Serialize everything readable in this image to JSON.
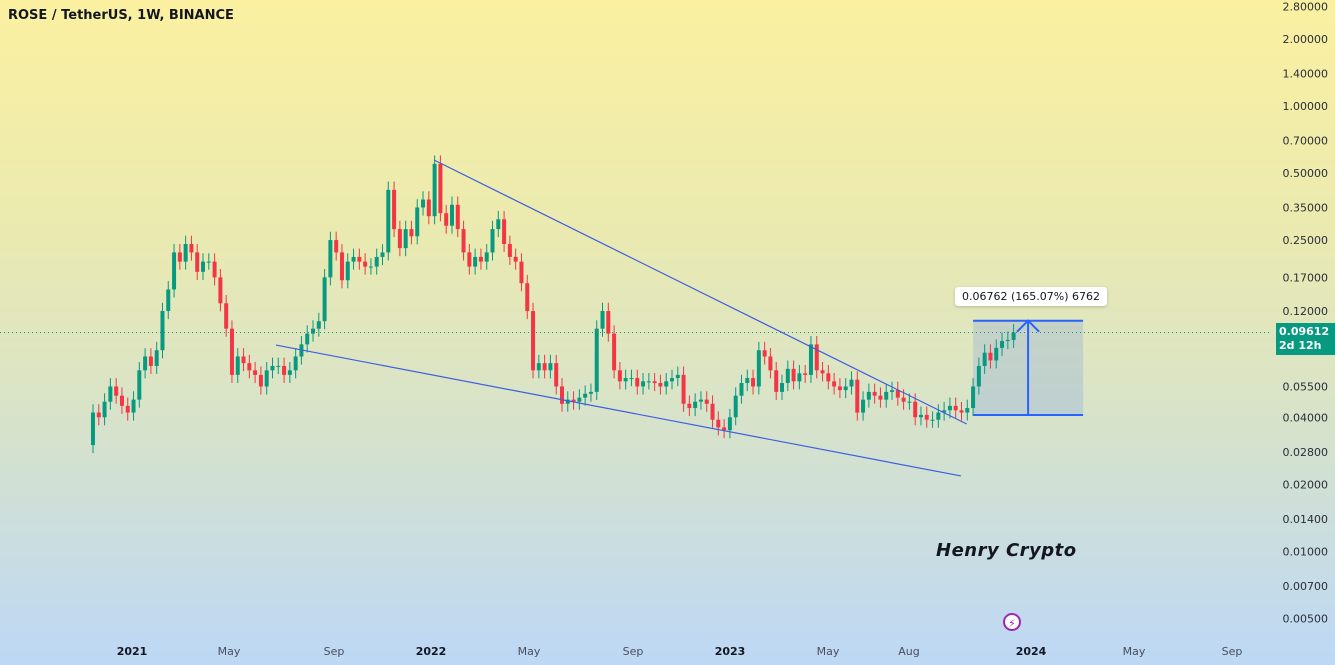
{
  "header": {
    "title": "ROSE / TetherUS, 1W, BINANCE"
  },
  "watermark": "Henry Crypto",
  "event_icon": "lightning-icon",
  "price_tag": {
    "price": "0.09612",
    "countdown": "2d 12h",
    "color": "#089981"
  },
  "measure": {
    "label": "0.06762 (165.07%) 6762",
    "from_price": 0.04096,
    "to_price": 0.10858,
    "from_week": 152,
    "to_week": 171,
    "color": "#2962ff"
  },
  "colors": {
    "up": "#089981",
    "down": "#f23645",
    "trendline": "#3d5ee0"
  },
  "chart_data": {
    "type": "candlestick",
    "title": "ROSE / TetherUS, 1W, BINANCE",
    "scale": "log",
    "interval": "1W",
    "first_open": 0.03,
    "last_price": 0.09612,
    "y_ticks": [
      "2.80000",
      "2.00000",
      "1.40000",
      "1.00000",
      "0.70000",
      "0.50000",
      "0.35000",
      "0.25000",
      "0.17000",
      "0.12000",
      "0.05500",
      "0.04000",
      "0.02800",
      "0.02000",
      "0.01400",
      "0.01000",
      "0.00700",
      "0.00500"
    ],
    "x_ticks": [
      "2021",
      "May",
      "Sep",
      "2022",
      "May",
      "Sep",
      "2023",
      "May",
      "Aug",
      "2024",
      "May",
      "Sep"
    ],
    "closes": [
      0.042,
      0.04,
      0.047,
      0.055,
      0.05,
      0.045,
      0.042,
      0.048,
      0.065,
      0.075,
      0.068,
      0.08,
      0.12,
      0.15,
      0.22,
      0.2,
      0.24,
      0.22,
      0.18,
      0.2,
      0.2,
      0.17,
      0.13,
      0.1,
      0.062,
      0.075,
      0.07,
      0.065,
      0.062,
      0.055,
      0.065,
      0.068,
      0.068,
      0.062,
      0.065,
      0.075,
      0.085,
      0.095,
      0.1,
      0.108,
      0.17,
      0.25,
      0.22,
      0.165,
      0.2,
      0.21,
      0.2,
      0.19,
      0.19,
      0.21,
      0.22,
      0.42,
      0.28,
      0.23,
      0.28,
      0.26,
      0.35,
      0.38,
      0.32,
      0.55,
      0.33,
      0.29,
      0.36,
      0.28,
      0.22,
      0.19,
      0.21,
      0.2,
      0.22,
      0.28,
      0.31,
      0.24,
      0.21,
      0.2,
      0.16,
      0.12,
      0.065,
      0.07,
      0.065,
      0.07,
      0.055,
      0.046,
      0.048,
      0.047,
      0.049,
      0.051,
      0.052,
      0.1,
      0.12,
      0.095,
      0.065,
      0.058,
      0.06,
      0.06,
      0.055,
      0.058,
      0.058,
      0.057,
      0.055,
      0.058,
      0.06,
      0.062,
      0.046,
      0.044,
      0.047,
      0.048,
      0.046,
      0.039,
      0.036,
      0.035,
      0.04,
      0.05,
      0.057,
      0.06,
      0.055,
      0.08,
      0.075,
      0.065,
      0.052,
      0.057,
      0.066,
      0.058,
      0.063,
      0.062,
      0.085,
      0.065,
      0.063,
      0.058,
      0.055,
      0.053,
      0.055,
      0.059,
      0.042,
      0.048,
      0.052,
      0.05,
      0.048,
      0.052,
      0.053,
      0.049,
      0.047,
      0.047,
      0.04,
      0.041,
      0.039,
      0.039,
      0.042,
      0.043,
      0.045,
      0.043,
      0.042,
      0.044,
      0.055,
      0.068,
      0.078,
      0.072,
      0.082,
      0.088,
      0.089,
      0.09612
    ],
    "trendlines": [
      {
        "name": "upper",
        "from": {
          "week": 58.9,
          "price": 0.572
        },
        "to": {
          "week": 150.9,
          "price": 0.0373
        }
      },
      {
        "name": "lower",
        "from": {
          "week": 31.6,
          "price": 0.0844
        },
        "to": {
          "week": 149.9,
          "price": 0.0218
        }
      }
    ]
  }
}
